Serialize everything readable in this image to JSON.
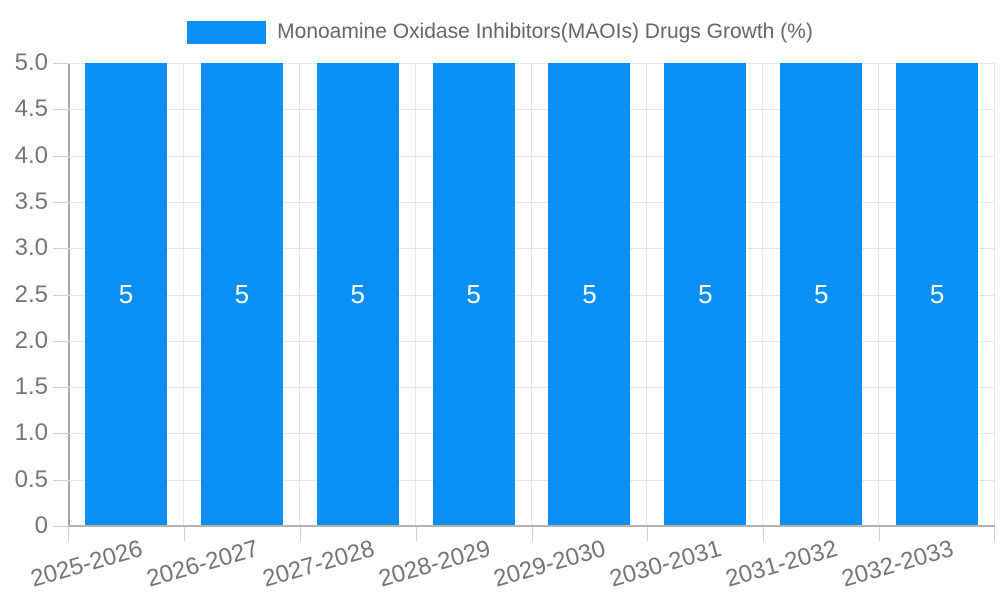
{
  "legend": {
    "label": "Monoamine Oxidase Inhibitors(MAOIs) Drugs Growth (%)"
  },
  "colors": {
    "bar": "#0a8ff7",
    "grid": "#e6e6e6",
    "axis_y": "#a6a6a6",
    "axis_x": "#b3b3b3",
    "tick": "#cfcfcf",
    "tick_text": "#757575",
    "legend_text": "#666666",
    "bar_label": "#ffffff",
    "background": "#ffffff"
  },
  "chart_data": {
    "type": "bar",
    "title": "Monoamine Oxidase Inhibitors(MAOIs) Drugs Growth (%)",
    "categories": [
      "2025-2026",
      "2026-2027",
      "2027-2028",
      "2028-2029",
      "2029-2030",
      "2030-2031",
      "2031-2032",
      "2032-2033"
    ],
    "values": [
      5,
      5,
      5,
      5,
      5,
      5,
      5,
      5
    ],
    "bar_labels": [
      "5",
      "5",
      "5",
      "5",
      "5",
      "5",
      "5",
      "5"
    ],
    "xlabel": "",
    "ylabel": "",
    "ylim": [
      0,
      5
    ],
    "ytick_step": 0.5,
    "ytick_labels": [
      "5.0",
      "4.5",
      "4.0",
      "3.5",
      "3.0",
      "2.5",
      "2.0",
      "1.5",
      "1.0",
      "0.5",
      "0"
    ],
    "grid": true,
    "legend_position": "top-center",
    "series_name": "Monoamine Oxidase Inhibitors(MAOIs) Drugs Growth (%)"
  }
}
